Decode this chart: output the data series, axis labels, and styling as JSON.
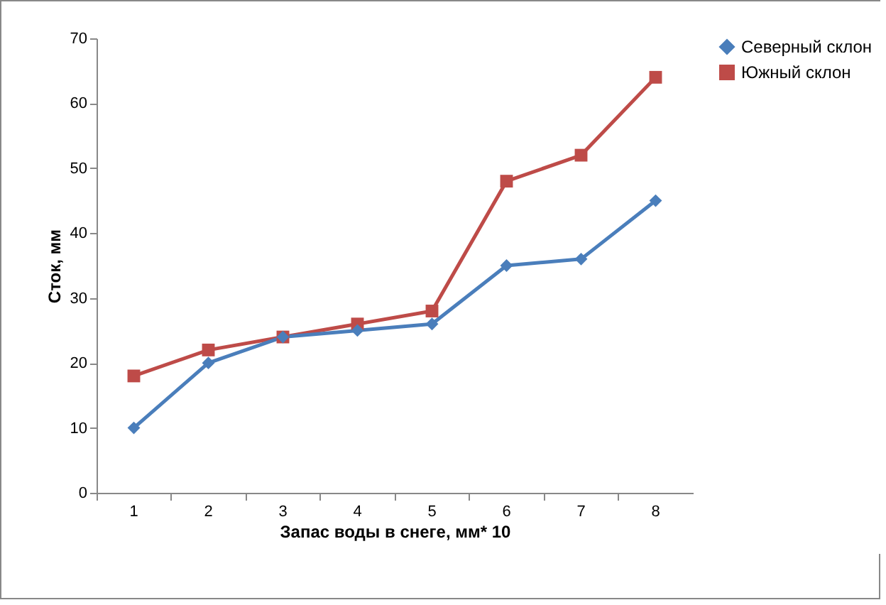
{
  "chart_data": {
    "type": "line",
    "xlabel": "Запас воды в снеге, мм* 10",
    "ylabel": "Сток, мм",
    "categories": [
      "1",
      "2",
      "3",
      "4",
      "5",
      "6",
      "7",
      "8"
    ],
    "series": [
      {
        "name": "Северный склон",
        "color": "#4a7ebb",
        "marker": "diamond",
        "values": [
          10,
          20,
          24,
          25,
          26,
          35,
          36,
          45
        ]
      },
      {
        "name": "Южный склон",
        "color": "#be4b48",
        "marker": "square",
        "values": [
          18,
          22,
          24,
          26,
          28,
          48,
          52,
          64
        ]
      }
    ],
    "ylim": [
      0,
      70
    ],
    "yticks": [
      0,
      10,
      20,
      30,
      40,
      50,
      60,
      70
    ],
    "grid": false,
    "legend": "right"
  }
}
